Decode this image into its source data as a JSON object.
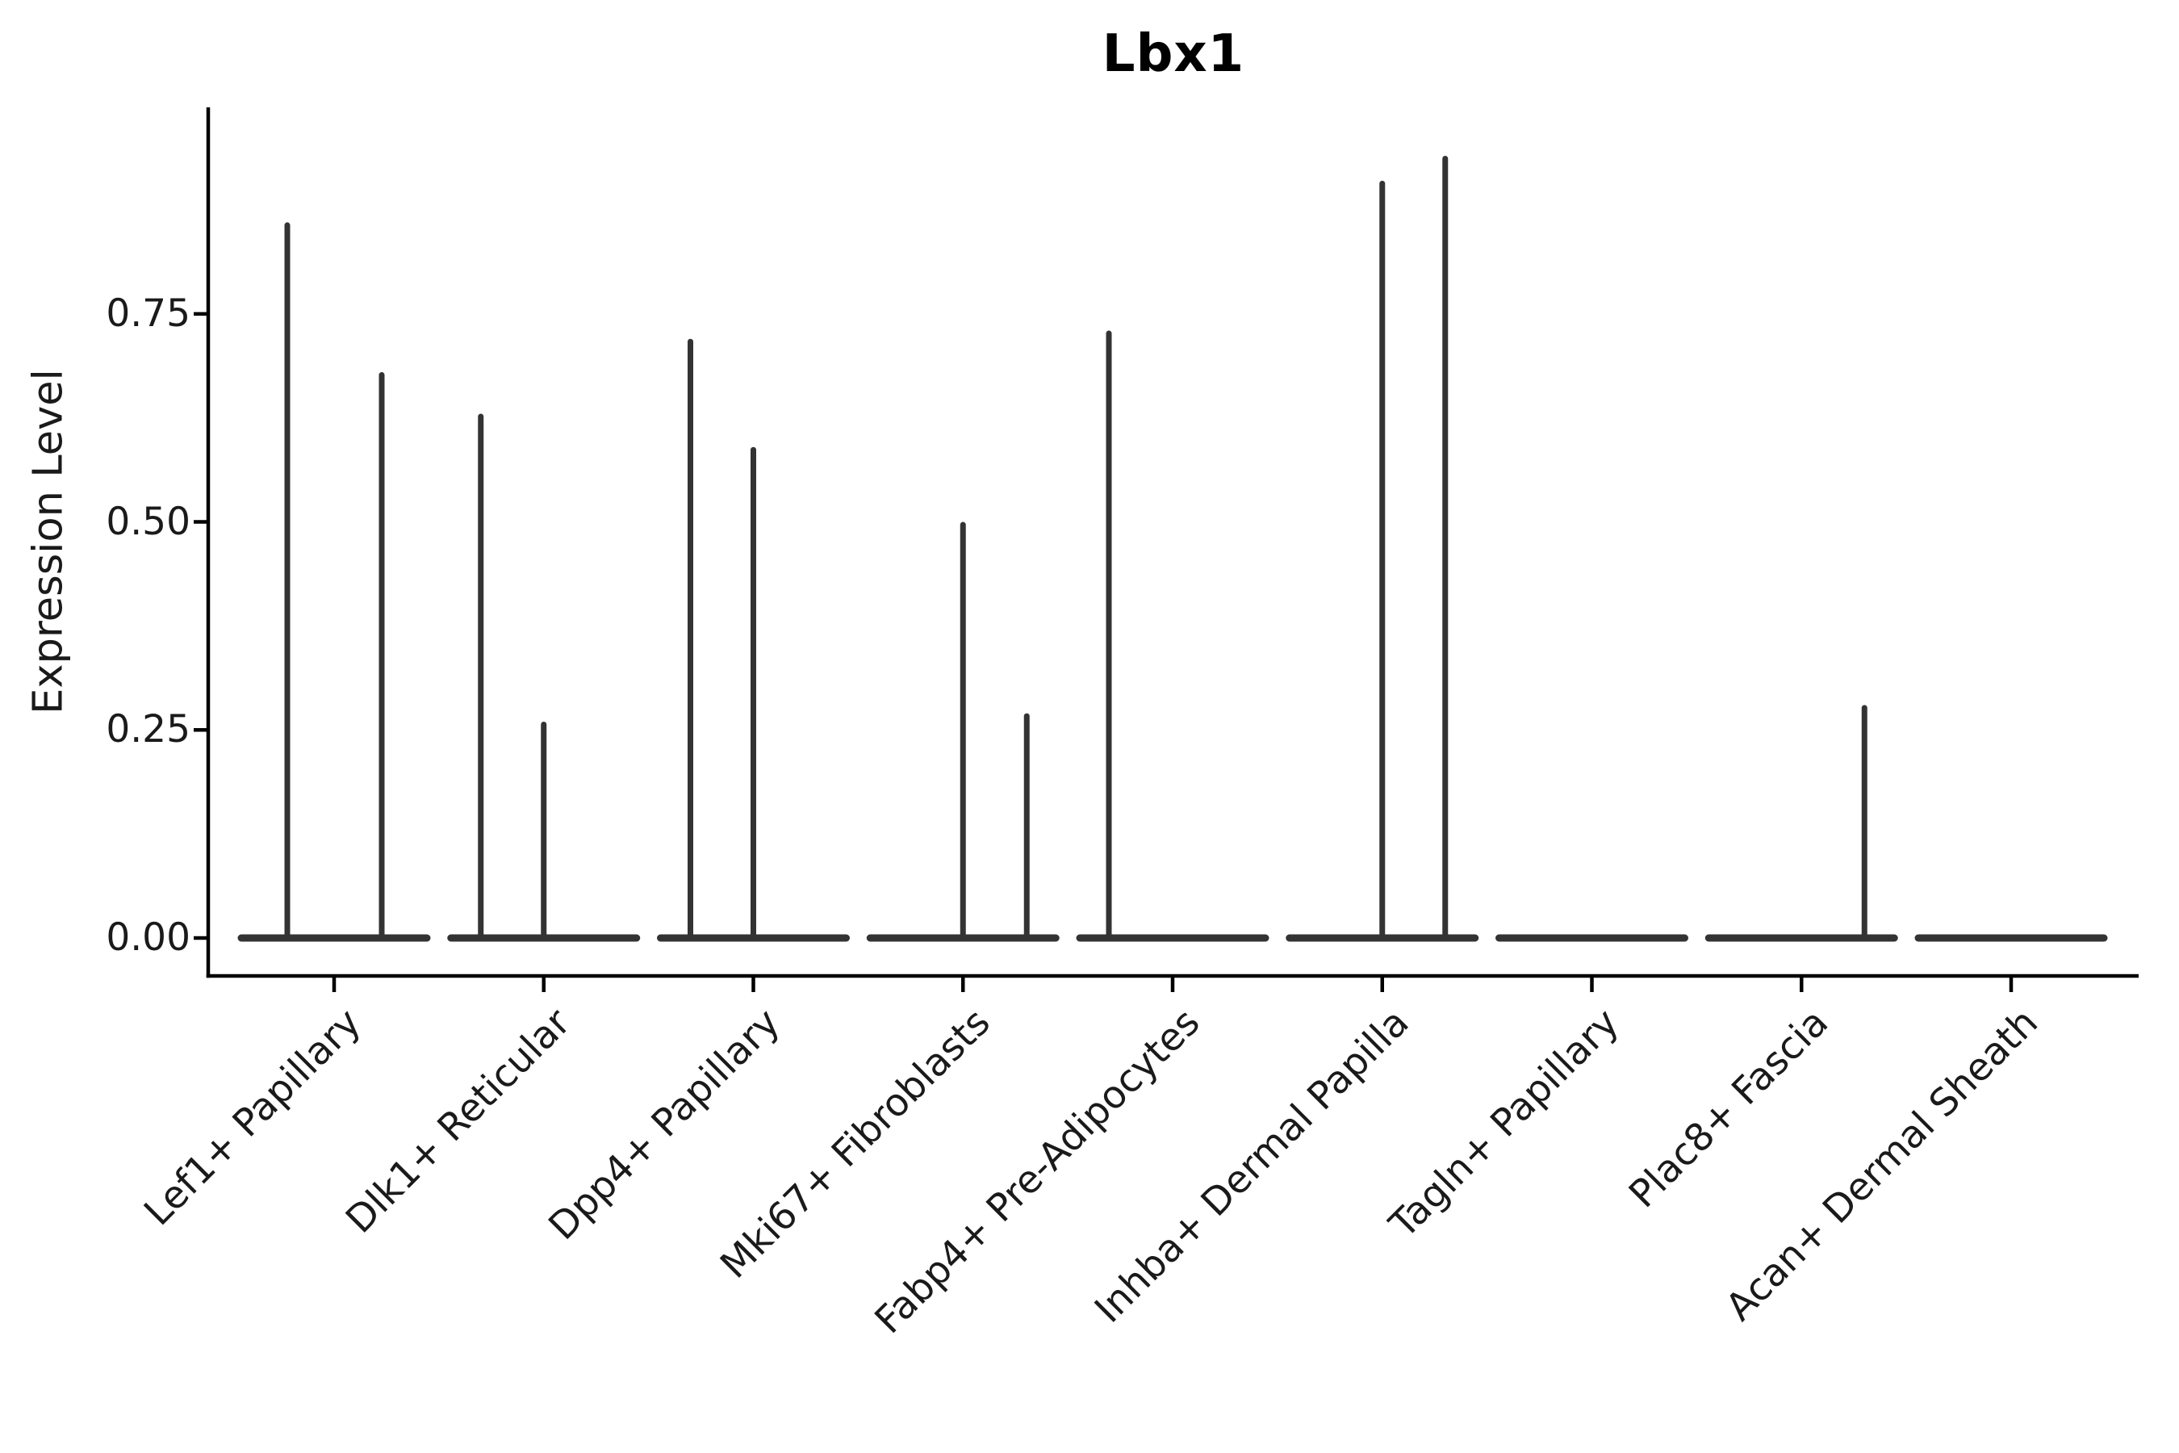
{
  "figure": {
    "background": "#ffffff"
  },
  "chart_data": {
    "type": "violin",
    "title": "Lbx1",
    "ylabel": "Expression Level",
    "xlabel": "",
    "ylim": [
      0,
      1.0
    ],
    "yticks": [
      0,
      0.25,
      0.5,
      0.75
    ],
    "ytick_labels": [
      "0.00",
      "0.25",
      "0.50",
      "0.75"
    ],
    "grid": false,
    "legend": "none",
    "x_tick_rotation_deg": 45,
    "axis_color": "#000000",
    "violin_color": "#333333",
    "baseline_value": 0,
    "categories": [
      "Lef1+ Papillary",
      "Dlk1+ Reticular",
      "Dpp4+ Papillary",
      "Mki67+ Fibroblasts",
      "Fabp4+ Pre-Adipocytes",
      "Inhba+ Dermal Papilla",
      "Tagln+ Papillary",
      "Plac8+ Fascia",
      "Acan+ Dermal Sheath"
    ],
    "violins": [
      {
        "category": "Lef1+ Papillary",
        "spikes": [
          {
            "offset": -58,
            "max": 0.86
          },
          {
            "offset": 59,
            "max": 0.68
          }
        ]
      },
      {
        "category": "Dlk1+ Reticular",
        "spikes": [
          {
            "offset": -78,
            "max": 0.63
          },
          {
            "offset": 0,
            "max": 0.26
          }
        ]
      },
      {
        "category": "Dpp4+ Papillary",
        "spikes": [
          {
            "offset": -78,
            "max": 0.72
          },
          {
            "offset": 0,
            "max": 0.59
          }
        ]
      },
      {
        "category": "Mki67+ Fibroblasts",
        "spikes": [
          {
            "offset": 0,
            "max": 0.5
          },
          {
            "offset": 79,
            "max": 0.27
          }
        ]
      },
      {
        "category": "Fabp4+ Pre-Adipocytes",
        "spikes": [
          {
            "offset": -79,
            "max": 0.73
          }
        ]
      },
      {
        "category": "Inhba+ Dermal Papilla",
        "spikes": [
          {
            "offset": 0,
            "max": 0.91
          },
          {
            "offset": 78,
            "max": 0.94
          }
        ]
      },
      {
        "category": "Tagln+ Papillary",
        "spikes": []
      },
      {
        "category": "Plac8+ Fascia",
        "spikes": [
          {
            "offset": 78,
            "max": 0.28
          }
        ]
      },
      {
        "category": "Acan+ Dermal Sheath",
        "spikes": []
      }
    ]
  }
}
